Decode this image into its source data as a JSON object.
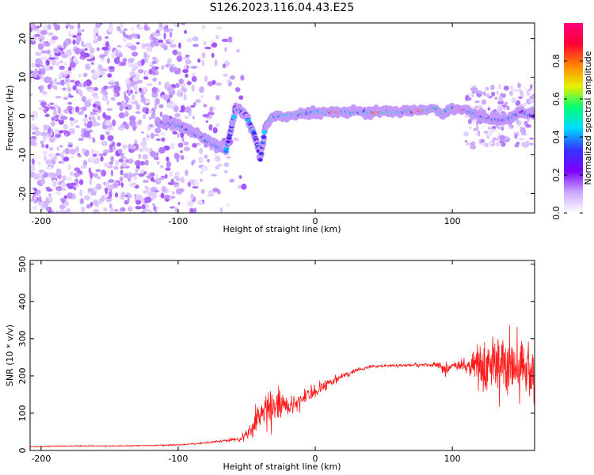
{
  "title": "S126.2023.116.04.43.E25",
  "chart_data": [
    {
      "type": "heatmap",
      "title": "S126.2023.116.04.43.E25",
      "xlabel": "Height of straight line (km)",
      "ylabel": "Frequency (Hz)",
      "xlim": [
        -208,
        160
      ],
      "ylim": [
        -25,
        24
      ],
      "x_ticks": [
        -200,
        -100,
        0,
        100
      ],
      "y_ticks": [
        -20,
        -10,
        0,
        10,
        20
      ],
      "colorbar": {
        "label": "Normalized spectral amplitude",
        "range": [
          0,
          1
        ],
        "ticks": [
          0.0,
          0.2,
          0.4,
          0.6,
          0.8
        ],
        "colormap": "rainbow",
        "colors": [
          "#ffffff",
          "#c9a5ff",
          "#7a00ff",
          "#3434ff",
          "#00d8ff",
          "#00ff73",
          "#e8f000",
          "#ff8400",
          "#ff0033",
          "#ff007f"
        ]
      },
      "ridge": {
        "x": [
          -115,
          -105,
          -95,
          -85,
          -75,
          -65,
          -58,
          -50,
          -44,
          -40,
          -36,
          -30,
          -20,
          -10,
          0,
          20,
          40,
          60,
          80,
          88,
          92,
          100,
          110,
          120,
          130,
          140,
          150,
          160
        ],
        "frequency": [
          -2,
          -2,
          -3,
          -5,
          -7,
          -9,
          2,
          0,
          -5,
          -11,
          -2,
          0,
          0,
          0.5,
          1,
          1,
          1,
          1,
          1.5,
          2,
          0.5,
          2,
          1.5,
          0,
          -1,
          -1,
          1,
          0
        ]
      },
      "grid": false
    },
    {
      "type": "line",
      "xlabel": "Height of straight line (km)",
      "ylabel": "SNR (10 * v/v)",
      "xlim": [
        -208,
        160
      ],
      "ylim": [
        0,
        510
      ],
      "x_ticks": [
        -200,
        -100,
        0,
        100
      ],
      "y_ticks": [
        0,
        100,
        200,
        300,
        400,
        500
      ],
      "series": [
        {
          "color": "#ff1a1a",
          "x": [
            -208,
            -180,
            -150,
            -120,
            -100,
            -80,
            -70,
            -55,
            -45,
            -40,
            -30,
            -25,
            -20,
            -10,
            0,
            10,
            20,
            30,
            40,
            60,
            80,
            90,
            95,
            100,
            105,
            110,
            120,
            130,
            140,
            150,
            160
          ],
          "y": [
            10,
            12,
            12,
            13,
            15,
            20,
            25,
            30,
            60,
            100,
            120,
            130,
            110,
            140,
            160,
            180,
            200,
            215,
            225,
            228,
            230,
            230,
            215,
            228,
            230,
            225,
            240,
            235,
            250,
            230,
            200
          ],
          "noise": [
            3,
            4,
            4,
            4,
            5,
            6,
            8,
            15,
            60,
            90,
            110,
            80,
            60,
            50,
            45,
            30,
            20,
            12,
            10,
            10,
            12,
            25,
            40,
            15,
            25,
            60,
            160,
            200,
            240,
            230,
            200
          ]
        }
      ],
      "grid": false
    }
  ]
}
